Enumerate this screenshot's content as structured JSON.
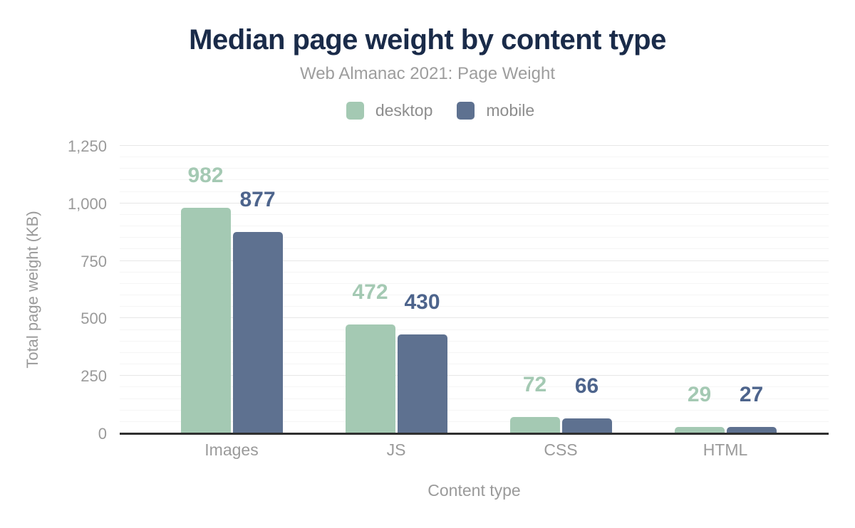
{
  "chart_data": {
    "type": "bar",
    "title": "Median page weight by content type",
    "subtitle": "Web Almanac 2021: Page Weight",
    "categories": [
      "Images",
      "JS",
      "CSS",
      "HTML"
    ],
    "series": [
      {
        "name": "desktop",
        "color": "#a4c9b3",
        "label_color": "#a4c9b3",
        "values": [
          982,
          472,
          72,
          29
        ]
      },
      {
        "name": "mobile",
        "color": "#5e7190",
        "label_color": "#4d648c",
        "values": [
          877,
          430,
          66,
          27
        ]
      }
    ],
    "xlabel": "Content type",
    "ylabel": "Total page weight (KB)",
    "ylim": [
      0,
      1250
    ],
    "yticks": [
      0,
      250,
      500,
      750,
      1000,
      1250
    ],
    "ytick_labels": [
      "0",
      "250",
      "500",
      "750",
      "1,000",
      "1,250"
    ],
    "minor_grid_step": 50,
    "grid": true,
    "legend_position": "top",
    "value_labels_shown": true
  },
  "colors": {
    "background": "#ffffff",
    "title": "#1a2b49",
    "subtitle": "#9d9d9d",
    "axis_text": "#9a9a9a",
    "legend_text": "#8d8d8d",
    "axis_line": "#2f2f2f",
    "grid_major": "#e7e7e7",
    "grid_minor": "#f5f5f5"
  }
}
